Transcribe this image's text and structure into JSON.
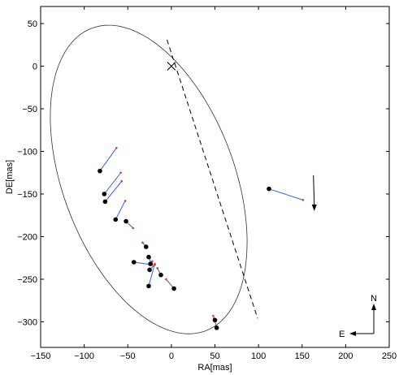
{
  "chart_data": {
    "type": "scatter",
    "title": "",
    "xlabel": "RA[mas]",
    "ylabel": "DE[mas]",
    "xlim": [
      -150,
      250
    ],
    "ylim": [
      -330,
      70
    ],
    "xticks": [
      -150,
      -100,
      -50,
      0,
      50,
      100,
      150,
      200,
      250
    ],
    "yticks": [
      50,
      0,
      -50,
      -100,
      -150,
      -200,
      -250,
      -300
    ],
    "xtick_labels": [
      "−150",
      "−100",
      "−50",
      "0",
      "50",
      "100",
      "150",
      "200",
      "250"
    ],
    "ytick_labels": [
      "50",
      "0",
      "−50",
      "−100",
      "−150",
      "−200",
      "−250",
      "−300"
    ],
    "grid": false,
    "primary": {
      "x": 0,
      "y": 0,
      "marker": "x"
    },
    "orbit": {
      "center": [
        -26,
        -133
      ],
      "axis_u": [
        64,
        -178
      ],
      "axis_v": [
        93,
        33
      ],
      "line_of_nodes": [
        [
          -5,
          31
        ],
        [
          99,
          -296
        ]
      ]
    },
    "observations": [
      {
        "obs": [
          -82,
          -123
        ],
        "model": [
          -63,
          -96
        ]
      },
      {
        "obs": [
          -77,
          -150
        ],
        "model": [
          -58,
          -125
        ]
      },
      {
        "obs": [
          -76,
          -159
        ],
        "model": [
          -57,
          -135
        ]
      },
      {
        "obs": [
          -64,
          -180
        ],
        "model": [
          -53,
          -158
        ]
      },
      {
        "obs": [
          -52,
          -182
        ],
        "model": [
          -44,
          -190
        ]
      },
      {
        "obs": [
          -29,
          -212
        ],
        "model": [
          -33,
          -207
        ]
      },
      {
        "obs": [
          -26,
          -224
        ],
        "model": [
          -23,
          -232
        ]
      },
      {
        "obs": [
          -43,
          -230
        ],
        "model": [
          -22,
          -233
        ]
      },
      {
        "obs": [
          -24,
          -232
        ],
        "model": [
          -22,
          -229
        ]
      },
      {
        "obs": [
          -25,
          -239
        ],
        "model": [
          -19,
          -233
        ]
      },
      {
        "obs": [
          -12,
          -245
        ],
        "model": [
          -16,
          -237
        ]
      },
      {
        "obs": [
          -26,
          -258
        ],
        "model": [
          -19,
          -232
        ]
      },
      {
        "obs": [
          3,
          -261
        ],
        "model": [
          -6,
          -250
        ]
      },
      {
        "obs": [
          112,
          -144
        ],
        "model": [
          151,
          -157
        ]
      },
      {
        "obs": [
          50,
          -298
        ],
        "model": [
          48,
          -293
        ]
      },
      {
        "obs": [
          52,
          -307
        ],
        "model": [
          49,
          -296
        ]
      }
    ],
    "motion_arrow": {
      "from": [
        163,
        -128
      ],
      "to": [
        164,
        -170
      ]
    },
    "compass": {
      "north": "N",
      "east": "E"
    }
  }
}
